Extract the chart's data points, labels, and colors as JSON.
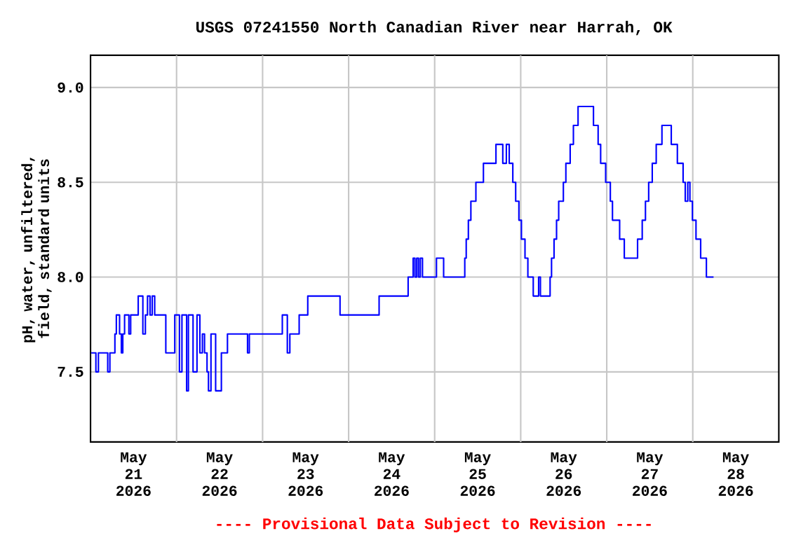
{
  "chart_data": {
    "type": "step",
    "title": "USGS 07241550 North Canadian River near Harrah, OK",
    "ylabel": "pH, water, unfiltered, field, standard units",
    "annotations": [
      "---- Provisional Data Subject to Revision ----"
    ],
    "xlim": [
      "2026-05-21T00:00",
      "2026-05-29T00:00"
    ],
    "xticks": [
      {
        "value": "2026-05-21T12:00",
        "label": "May 21 2026"
      },
      {
        "value": "2026-05-22T12:00",
        "label": "May 22 2026"
      },
      {
        "value": "2026-05-23T12:00",
        "label": "May 23 2026"
      },
      {
        "value": "2026-05-24T12:00",
        "label": "May 24 2026"
      },
      {
        "value": "2026-05-25T12:00",
        "label": "May 25 2026"
      },
      {
        "value": "2026-05-26T12:00",
        "label": "May 26 2026"
      },
      {
        "value": "2026-05-27T12:00",
        "label": "May 27 2026"
      },
      {
        "value": "2026-05-28T12:00",
        "label": "May 28 2026"
      },
      {
        "value": "2026-05-22T00:00",
        "label": null
      },
      {
        "value": "2026-05-23T00:00",
        "label": null
      },
      {
        "value": "2026-05-24T00:00",
        "label": null
      },
      {
        "value": "2026-05-25T00:00",
        "label": null
      },
      {
        "value": "2026-05-26T00:00",
        "label": null
      },
      {
        "value": "2026-05-27T00:00",
        "label": null
      },
      {
        "value": "2026-05-28T00:00",
        "label": null
      }
    ],
    "ylim": [
      7.13,
      9.17
    ],
    "yticks": [
      {
        "value": 7.5,
        "label": "7.5"
      },
      {
        "value": 8.0,
        "label": "8.0"
      },
      {
        "value": 8.5,
        "label": "8.5"
      },
      {
        "value": 9.0,
        "label": "9.0"
      }
    ],
    "grid": true,
    "marker": "none",
    "line_style": "solid",
    "series": [
      {
        "color": "#0000ff",
        "x": [
          "2026-05-21T00:12",
          "2026-05-21T01:30",
          "2026-05-21T02:12",
          "2026-05-21T04:48",
          "2026-05-21T05:24",
          "2026-05-21T06:48",
          "2026-05-21T07:12",
          "2026-05-21T08:06",
          "2026-05-21T08:36",
          "2026-05-21T09:00",
          "2026-05-21T09:30",
          "2026-05-21T10:42",
          "2026-05-21T11:12",
          "2026-05-21T13:18",
          "2026-05-21T14:36",
          "2026-05-21T15:18",
          "2026-05-21T15:54",
          "2026-05-21T16:36",
          "2026-05-21T17:12",
          "2026-05-21T17:54",
          "2026-05-21T21:00",
          "2026-05-21T23:30",
          "2026-05-22T00:48",
          "2026-05-22T01:30",
          "2026-05-22T02:48",
          "2026-05-22T03:18",
          "2026-05-22T04:36",
          "2026-05-22T05:42",
          "2026-05-22T06:30",
          "2026-05-22T07:12",
          "2026-05-22T07:48",
          "2026-05-22T08:30",
          "2026-05-22T08:54",
          "2026-05-22T09:36",
          "2026-05-22T10:54",
          "2026-05-22T12:30",
          "2026-05-22T14:12",
          "2026-05-22T19:48",
          "2026-05-22T20:18",
          "2026-05-23T05:30",
          "2026-05-23T06:54",
          "2026-05-23T07:36",
          "2026-05-23T10:12",
          "2026-05-23T12:36",
          "2026-05-23T21:36",
          "2026-05-24T08:30",
          "2026-05-24T16:36",
          "2026-05-24T18:00",
          "2026-05-24T18:30",
          "2026-05-24T19:00",
          "2026-05-24T19:30",
          "2026-05-24T20:00",
          "2026-05-24T20:36",
          "2026-05-25T00:30",
          "2026-05-25T02:30",
          "2026-05-25T08:24",
          "2026-05-25T08:48",
          "2026-05-25T09:24",
          "2026-05-25T10:06",
          "2026-05-25T11:30",
          "2026-05-25T13:36",
          "2026-05-25T17:06",
          "2026-05-25T19:00",
          "2026-05-25T20:00",
          "2026-05-25T20:48",
          "2026-05-25T21:48",
          "2026-05-25T22:36",
          "2026-05-25T23:30",
          "2026-05-26T00:12",
          "2026-05-26T01:12",
          "2026-05-26T02:00",
          "2026-05-26T03:30",
          "2026-05-26T05:00",
          "2026-05-26T05:30",
          "2026-05-26T08:12",
          "2026-05-26T08:36",
          "2026-05-26T09:18",
          "2026-05-26T10:00",
          "2026-05-26T10:36",
          "2026-05-26T11:54",
          "2026-05-26T12:36",
          "2026-05-26T13:48",
          "2026-05-26T14:42",
          "2026-05-26T16:00",
          "2026-05-26T20:18",
          "2026-05-26T21:36",
          "2026-05-26T22:18",
          "2026-05-26T23:42",
          "2026-05-27T01:00",
          "2026-05-27T01:36",
          "2026-05-27T03:36",
          "2026-05-27T04:54",
          "2026-05-27T08:36",
          "2026-05-27T09:54",
          "2026-05-27T10:48",
          "2026-05-27T11:42",
          "2026-05-27T12:42",
          "2026-05-27T13:48",
          "2026-05-27T15:24",
          "2026-05-27T18:00",
          "2026-05-27T19:42",
          "2026-05-27T21:18",
          "2026-05-27T21:54",
          "2026-05-27T22:36",
          "2026-05-27T23:12",
          "2026-05-27T23:54",
          "2026-05-28T00:54",
          "2026-05-28T02:12",
          "2026-05-28T03:48",
          "2026-05-28T05:48"
        ],
        "values": [
          7.6,
          7.5,
          7.6,
          7.5,
          7.6,
          7.7,
          7.8,
          7.7,
          7.6,
          7.7,
          7.8,
          7.7,
          7.8,
          7.9,
          7.7,
          7.8,
          7.9,
          7.8,
          7.9,
          7.8,
          7.6,
          7.8,
          7.5,
          7.8,
          7.4,
          7.8,
          7.5,
          7.8,
          7.6,
          7.7,
          7.6,
          7.5,
          7.4,
          7.7,
          7.4,
          7.6,
          7.7,
          7.6,
          7.7,
          7.8,
          7.6,
          7.7,
          7.8,
          7.9,
          7.8,
          7.9,
          8.0,
          8.1,
          8.0,
          8.1,
          8.0,
          8.1,
          8.0,
          8.1,
          8.0,
          8.1,
          8.2,
          8.3,
          8.4,
          8.5,
          8.6,
          8.7,
          8.6,
          8.7,
          8.6,
          8.5,
          8.4,
          8.3,
          8.2,
          8.1,
          8.0,
          7.9,
          8.0,
          7.9,
          8.0,
          8.1,
          8.2,
          8.3,
          8.4,
          8.5,
          8.6,
          8.7,
          8.8,
          8.9,
          8.8,
          8.7,
          8.6,
          8.5,
          8.4,
          8.3,
          8.2,
          8.1,
          8.2,
          8.3,
          8.4,
          8.5,
          8.6,
          8.7,
          8.8,
          8.7,
          8.6,
          8.5,
          8.4,
          8.5,
          8.4,
          8.3,
          8.2,
          8.1,
          8.0,
          8.0
        ]
      }
    ]
  }
}
